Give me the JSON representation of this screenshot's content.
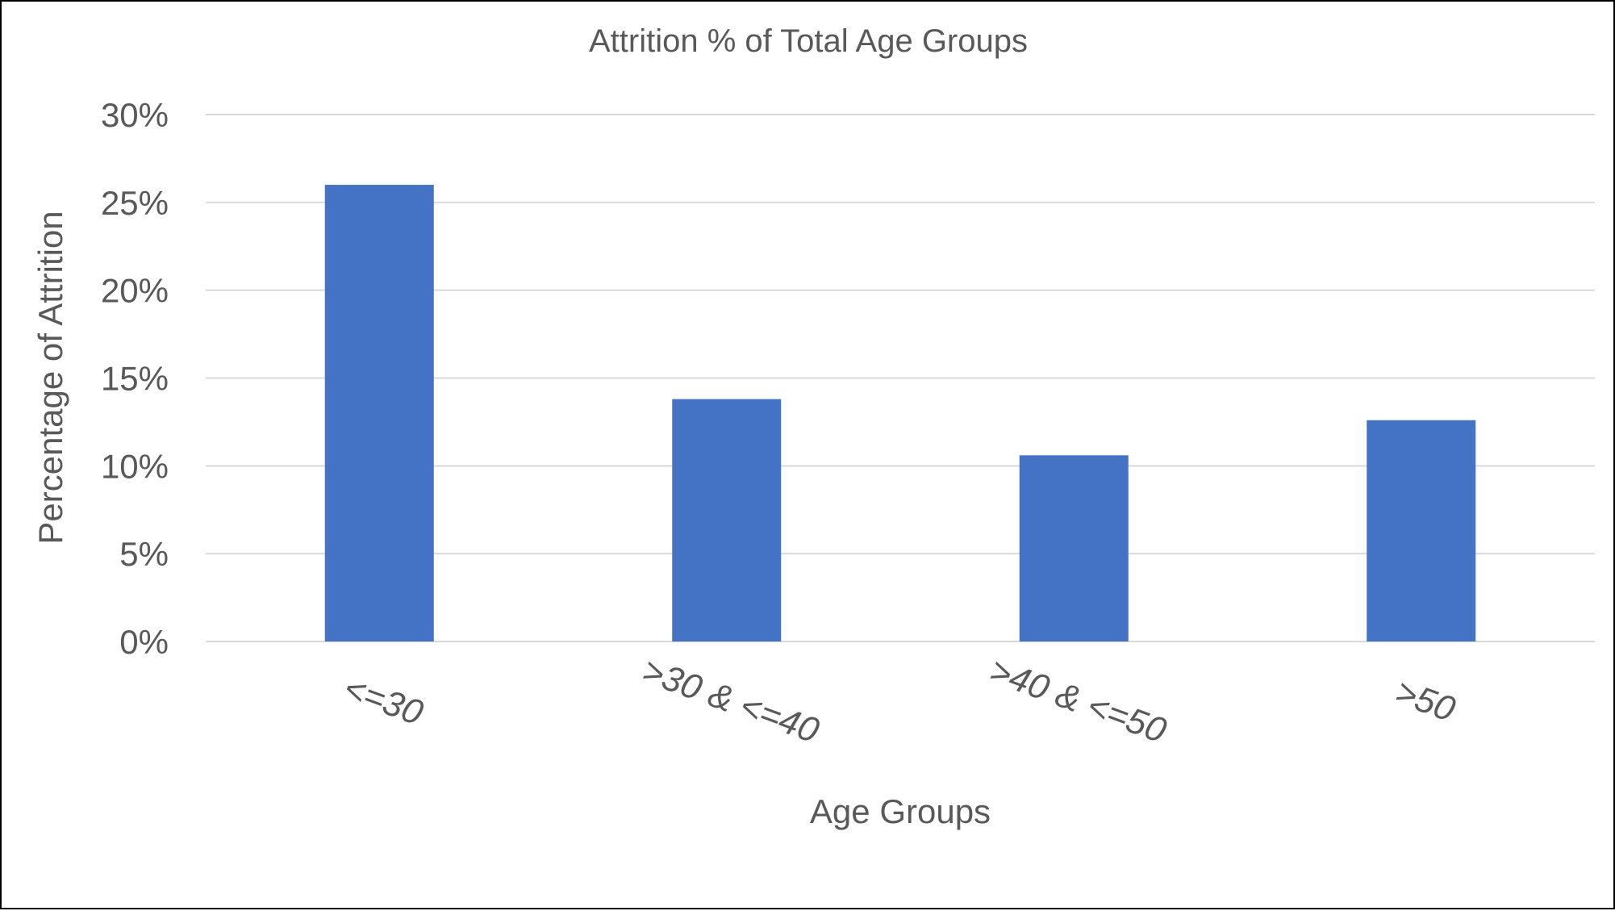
{
  "chart_data": {
    "type": "bar",
    "title": "Attrition % of Total Age Groups",
    "xlabel": "Age Groups",
    "ylabel": "Percentage of Attrition",
    "categories": [
      "<=30",
      ">30 & <=40",
      ">40 & <=50",
      ">50"
    ],
    "values": [
      26,
      13.8,
      10.6,
      12.6
    ],
    "ylim": [
      0,
      30
    ],
    "yticks": [
      0,
      5,
      10,
      15,
      20,
      25,
      30
    ],
    "ytick_labels": [
      "0%",
      "5%",
      "10%",
      "15%",
      "20%",
      "25%",
      "30%"
    ],
    "grid": true,
    "legend": "none",
    "colors": {
      "bar": "#4472C4",
      "grid": "#D9D9D9",
      "text": "#595959"
    }
  }
}
